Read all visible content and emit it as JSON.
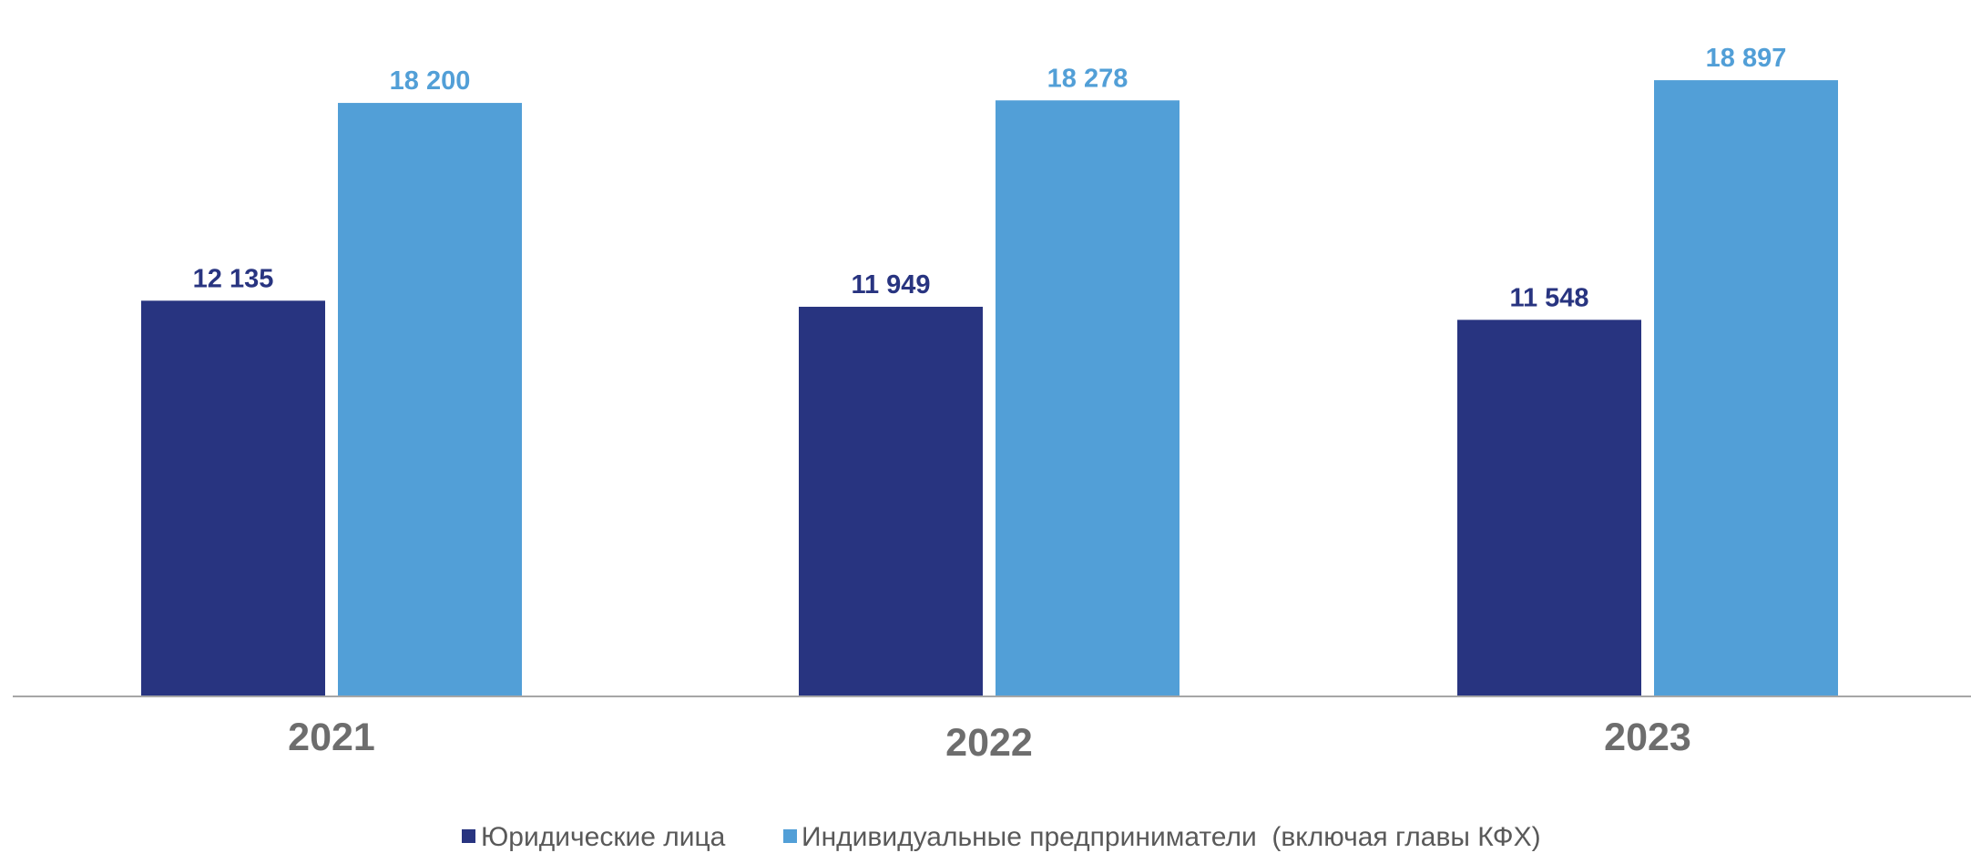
{
  "chart_data": {
    "type": "bar",
    "categories": [
      "2021",
      "2022",
      "2023"
    ],
    "series": [
      {
        "name": "Юридические лица",
        "values": [
          12135,
          11949,
          11548
        ],
        "labels": [
          "12 135",
          "11 949",
          "11 548"
        ],
        "color": "#283480"
      },
      {
        "name": "Индивидуальные предприниматели  (включая главы КФХ)",
        "values": [
          18200,
          18278,
          18897
        ],
        "labels": [
          "18 200",
          "18 278",
          "18 897"
        ],
        "color": "#529fd7"
      }
    ],
    "ylim": [
      0,
      20100
    ],
    "grid": false,
    "legend_position": "bottom",
    "axis_color": "#a6a6a6",
    "category_label_color": "#6d6d6d",
    "legend_text_color": "#595959"
  }
}
